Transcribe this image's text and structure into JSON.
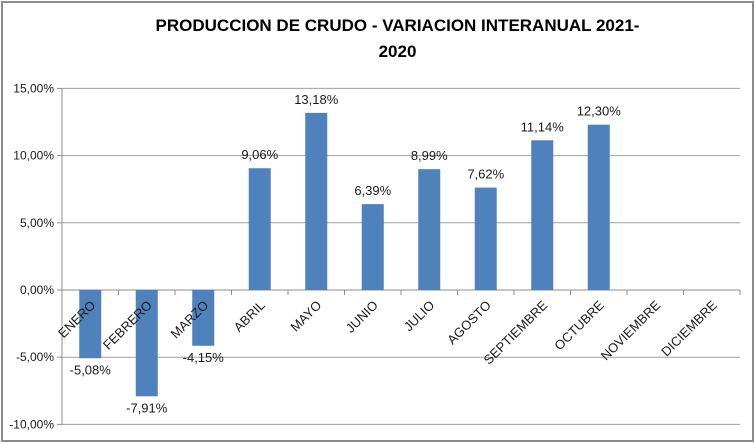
{
  "window": {
    "background": "#FFFFFF",
    "border_color": "#8C8C8C"
  },
  "header": {
    "title_line1": "PRODUCCION DE CRUDO - VARIACION INTERANUAL 2021-",
    "title_line2": "2020"
  },
  "chart_data": {
    "type": "bar",
    "title": "PRODUCCION DE CRUDO - VARIACION INTERANUAL 2021-2020",
    "xlabel": "",
    "ylabel": "",
    "categories": [
      "ENERO",
      "FEBRERO",
      "MARZO",
      "ABRIL",
      "MAYO",
      "JUNIO",
      "JULIO",
      "AGOSTO",
      "SEPTIEMBRE",
      "OCTUBRE",
      "NOVIEMBRE",
      "DICIEMBRE"
    ],
    "values": [
      -5.08,
      -7.91,
      -4.15,
      9.06,
      13.18,
      6.39,
      8.99,
      7.62,
      11.14,
      12.3,
      null,
      null
    ],
    "value_labels": [
      "-5,08%",
      "-7,91%",
      "-4,15%",
      "9,06%",
      "13,18%",
      "6,39%",
      "8,99%",
      "7,62%",
      "11,14%",
      "12,30%",
      "",
      ""
    ],
    "y_ticks": [
      15,
      10,
      5,
      0,
      -5,
      -10
    ],
    "y_tick_labels": [
      "15,00%",
      "10,00%",
      "5,00%",
      "0,00%",
      "-5,00%",
      "-10,00%"
    ],
    "ylim": [
      -10,
      15
    ],
    "grid": true,
    "legend": "none",
    "bar_color": "#4F81BD",
    "gridline_color": "#A0A0A0",
    "axis_color": "#8C8C8C",
    "label_color": "#1A1A1A",
    "title_color": "#000000"
  }
}
